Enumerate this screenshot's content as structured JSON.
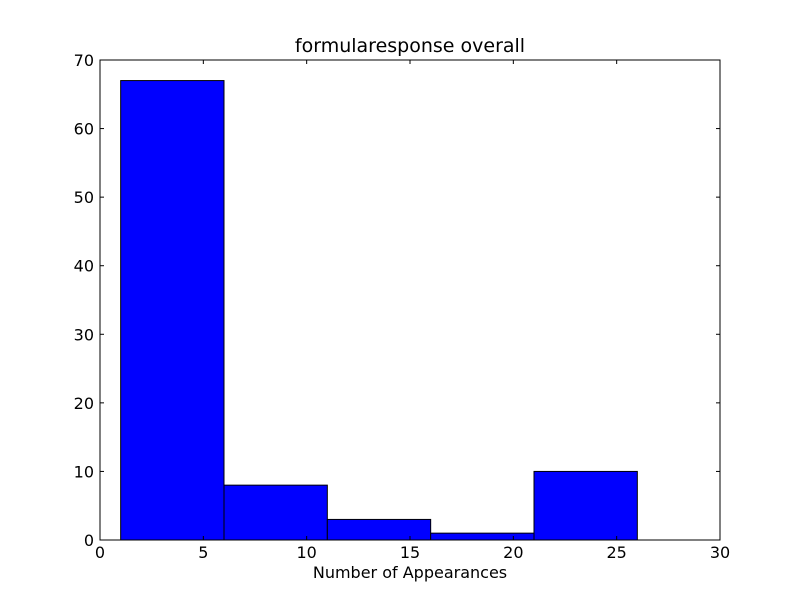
{
  "chart_data": {
    "type": "bar",
    "title": "formularesponse overall",
    "xlabel": "Number of Appearances",
    "ylabel": "",
    "xlim": [
      0,
      30
    ],
    "ylim": [
      0,
      70
    ],
    "xticks": [
      0,
      5,
      10,
      15,
      20,
      25,
      30
    ],
    "yticks": [
      0,
      10,
      20,
      30,
      40,
      50,
      60,
      70
    ],
    "grid": false,
    "bar_color": "#0000ff",
    "edge_color": "#000000",
    "bins": [
      {
        "start": 1,
        "end": 6,
        "value": 67
      },
      {
        "start": 6,
        "end": 11,
        "value": 8
      },
      {
        "start": 11,
        "end": 16,
        "value": 3
      },
      {
        "start": 16,
        "end": 21,
        "value": 1
      },
      {
        "start": 21,
        "end": 26,
        "value": 10
      }
    ]
  }
}
